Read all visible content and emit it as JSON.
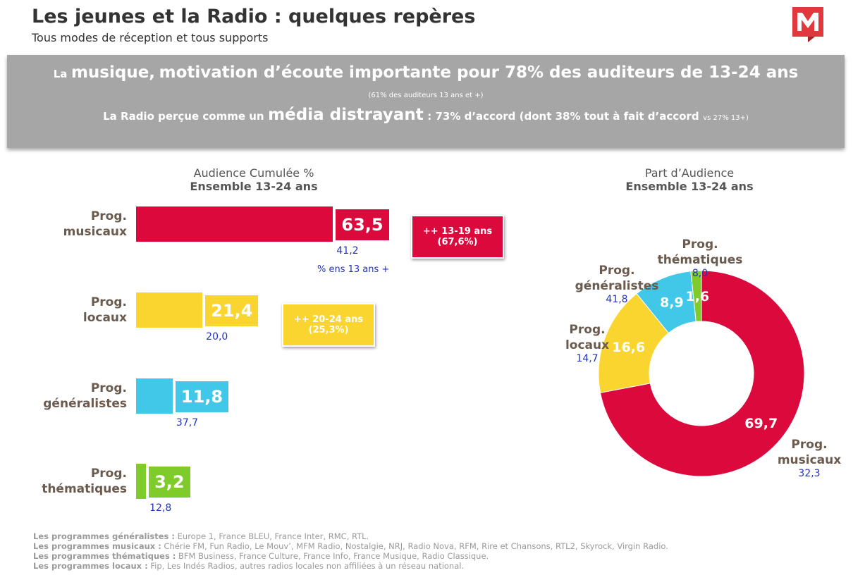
{
  "header": {
    "title": "Les jeunes et la Radio : quelques repères",
    "subtitle": "Tous modes de réception et tous supports"
  },
  "banner": {
    "line1": [
      "La",
      "musique,",
      "motivation d’écoute importante pour 78% des auditeurs de 13-24 ans"
    ],
    "note": "(61% des auditeurs  13 ans et +)",
    "line2": [
      "La Radio perçue comme un",
      "média distrayant",
      ": 73% d’accord (dont 38% tout à fait d’accord",
      "vs  27% 13+)"
    ]
  },
  "chart_data": [
    {
      "type": "bar",
      "orientation": "horizontal",
      "title": "Audience Cumulée %",
      "subtitle": "Ensemble 13-24 ans",
      "categories": [
        "Prog. musicaux",
        "Prog. locaux",
        "Prog. généralistes",
        "Prog. thématiques"
      ],
      "colors": [
        "#dc0a3c",
        "#fbd52f",
        "#41c8e8",
        "#7fcb2b"
      ],
      "values": [
        63.5,
        21.4,
        11.8,
        3.2
      ],
      "value_labels": [
        "63,5",
        "21,4",
        "11,8",
        "3,2"
      ],
      "comparison": {
        "name": "% ens 13 ans +",
        "values": [
          41.2,
          20.0,
          37.7,
          12.8
        ],
        "value_labels": [
          "41,2",
          "20,0",
          "37,7",
          "12,8"
        ]
      },
      "annotations": [
        "++ 13-19 ans (67,6%)",
        "++ 20-24 ans (25,3%)"
      ]
    },
    {
      "type": "donut",
      "title": "Part d’Audience",
      "subtitle": "Ensemble 13-24 ans",
      "categories": [
        "Prog. musicaux",
        "Prog. locaux",
        "Prog. généralistes",
        "Prog. thématiques"
      ],
      "colors": [
        "#dc0a3c",
        "#fbd52f",
        "#41c8e8",
        "#7fcb2b"
      ],
      "values": [
        69.7,
        16.6,
        8.9,
        1.6
      ],
      "value_labels": [
        "69,7",
        "16,6",
        "8,9",
        "1,6"
      ],
      "comparison": {
        "values": [
          32.3,
          14.7,
          41.8,
          8.0
        ],
        "value_labels": [
          "32,3",
          "14,7",
          "41,8",
          "8,0"
        ]
      }
    }
  ],
  "footnotes": [
    {
      "label": "Les programmes généralistes :",
      "text": "Europe 1, France BLEU, France Inter, RMC, RTL."
    },
    {
      "label": "Les programmes musicaux :",
      "text": "Chérie FM, Fun Radio, Le Mouv’, MFM Radio, Nostalgie, NRJ, Radio Nova, RFM, Rire et Chansons, RTL2, Skyrock, Virgin Radio."
    },
    {
      "label": "Les programmes thématiques :",
      "text": "BFM Business, France Culture, France Info, France Musique, Radio Classique."
    },
    {
      "label": "Les programmes locaux :",
      "text": "Fip, Les Indés Radios, autres radios locales non affiliées à un réseau national."
    }
  ]
}
